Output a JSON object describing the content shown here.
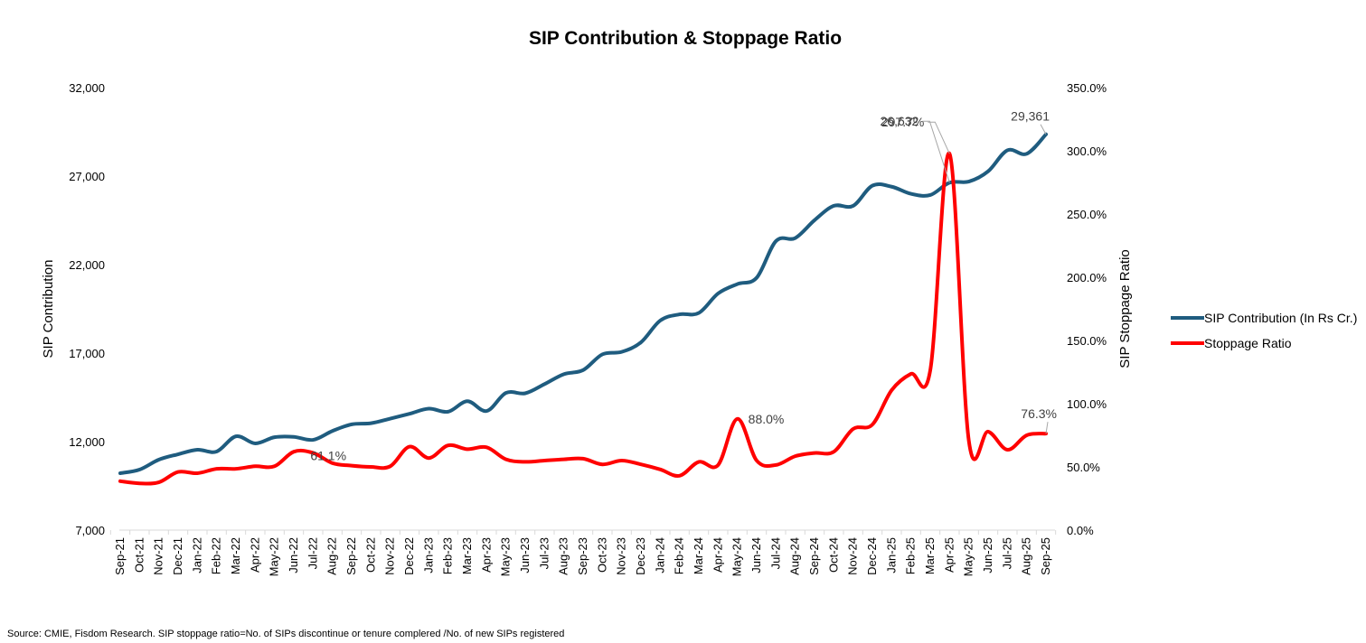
{
  "chart_data": {
    "type": "line",
    "title": "SIP Contribution & Stoppage Ratio",
    "xlabel": "",
    "ylabel": "SIP Contribution",
    "y2label": "SIP Stoppage Ratio",
    "ylim": [
      7000,
      32000
    ],
    "yticks": [
      7000,
      12000,
      17000,
      22000,
      27000,
      32000
    ],
    "ytick_labels": [
      "7,000",
      "12,000",
      "17,000",
      "22,000",
      "27,000",
      "32,000"
    ],
    "y2lim": [
      0,
      350
    ],
    "y2ticks": [
      0,
      50,
      100,
      150,
      200,
      250,
      300,
      350
    ],
    "y2tick_labels": [
      "0.0%",
      "50.0%",
      "100.0%",
      "150.0%",
      "200.0%",
      "250.0%",
      "300.0%",
      "350.0%"
    ],
    "grid": false,
    "legend_position": "right",
    "categories": [
      "Sep-21",
      "Oct-21",
      "Nov-21",
      "Dec-21",
      "Jan-22",
      "Feb-22",
      "Mar-22",
      "Apr-22",
      "May-22",
      "Jun-22",
      "Jul-22",
      "Aug-22",
      "Sep-22",
      "Oct-22",
      "Nov-22",
      "Dec-22",
      "Jan-23",
      "Feb-23",
      "Mar-23",
      "Apr-23",
      "May-23",
      "Jun-23",
      "Jul-23",
      "Aug-23",
      "Sep-23",
      "Oct-23",
      "Nov-23",
      "Dec-23",
      "Jan-24",
      "Feb-24",
      "Mar-24",
      "Apr-24",
      "May-24",
      "Jun-24",
      "Jul-24",
      "Aug-24",
      "Sep-24",
      "Oct-24",
      "Nov-24",
      "Dec-24",
      "Jan-25",
      "Feb-25",
      "Mar-25",
      "Apr-25",
      "May-25",
      "Jun-25",
      "Jul-25",
      "Aug-25",
      "Sep-25"
    ],
    "series": [
      {
        "name": "SIP Contribution (In Rs Cr.)",
        "axis": "left",
        "color": "#1F5C7F",
        "values": [
          10214,
          10418,
          10980,
          11285,
          11540,
          11440,
          12300,
          11900,
          12250,
          12270,
          12100,
          12600,
          12976,
          13040,
          13300,
          13570,
          13860,
          13690,
          14280,
          13730,
          14750,
          14730,
          15250,
          15810,
          16040,
          16930,
          17070,
          17610,
          18840,
          19190,
          19270,
          20370,
          20900,
          21260,
          23330,
          23500,
          24510,
          25320,
          25320,
          26460,
          26400,
          26000,
          25930,
          26632,
          26690,
          27270,
          28460,
          28260,
          29361
        ]
      },
      {
        "name": "Stoppage Ratio",
        "axis": "right",
        "color": "#FF0000",
        "values": [
          38.7,
          37.0,
          37.8,
          46.0,
          45.0,
          48.5,
          48.5,
          50.5,
          50.5,
          62.0,
          61.1,
          53.0,
          51.0,
          50.0,
          50.5,
          66.0,
          57.0,
          67.0,
          64.0,
          65.5,
          56.0,
          54.0,
          55.0,
          56.0,
          56.5,
          52.0,
          55.0,
          52.0,
          48.0,
          43.0,
          54.0,
          51.5,
          88.0,
          55.0,
          51.5,
          58.5,
          61.0,
          62.0,
          80.0,
          83.5,
          110.7,
          123.6,
          126.4,
          297.7,
          70.7,
          77.9,
          63.6,
          75.0,
          76.3
        ]
      }
    ],
    "annotations": [
      {
        "series": 1,
        "category": "Jul-22",
        "text": "61.1%"
      },
      {
        "series": 1,
        "category": "May-24",
        "text": "88.0%"
      },
      {
        "series": 1,
        "category": "Apr-25",
        "text": "297.7%"
      },
      {
        "series": 0,
        "category": "Apr-25",
        "text": "26,632"
      },
      {
        "series": 0,
        "category": "Sep-25",
        "text": "29,361"
      },
      {
        "series": 1,
        "category": "Sep-25",
        "text": "76.3%"
      }
    ]
  },
  "footer": {
    "source": "Source: CMIE, Fisdom Research. SIP stoppage ratio=No. of SIPs discontinue or tenure complered /No. of new SIPs registered"
  }
}
